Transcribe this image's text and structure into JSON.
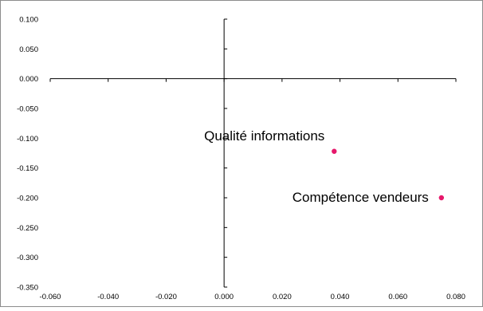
{
  "chart_data": {
    "type": "scatter",
    "title": "",
    "xlabel": "",
    "ylabel": "",
    "xlim": [
      -0.06,
      0.08
    ],
    "ylim": [
      -0.35,
      0.1
    ],
    "x_ticks": [
      "-0.060",
      "-0.040",
      "-0.020",
      "0.000",
      "0.020",
      "0.040",
      "0.060",
      "0.080"
    ],
    "y_ticks": [
      "0.100",
      "0.050",
      "0.000",
      "-0.050",
      "-0.100",
      "-0.150",
      "-0.200",
      "-0.250",
      "-0.300",
      "-0.350"
    ],
    "grid": false,
    "legend": "none",
    "marker_color": "#e6186b",
    "points": [
      {
        "label": "Qualité informations",
        "x": 0.038,
        "y": -0.122
      },
      {
        "label": "Compétence vendeurs",
        "x": 0.075,
        "y": -0.2
      }
    ]
  }
}
